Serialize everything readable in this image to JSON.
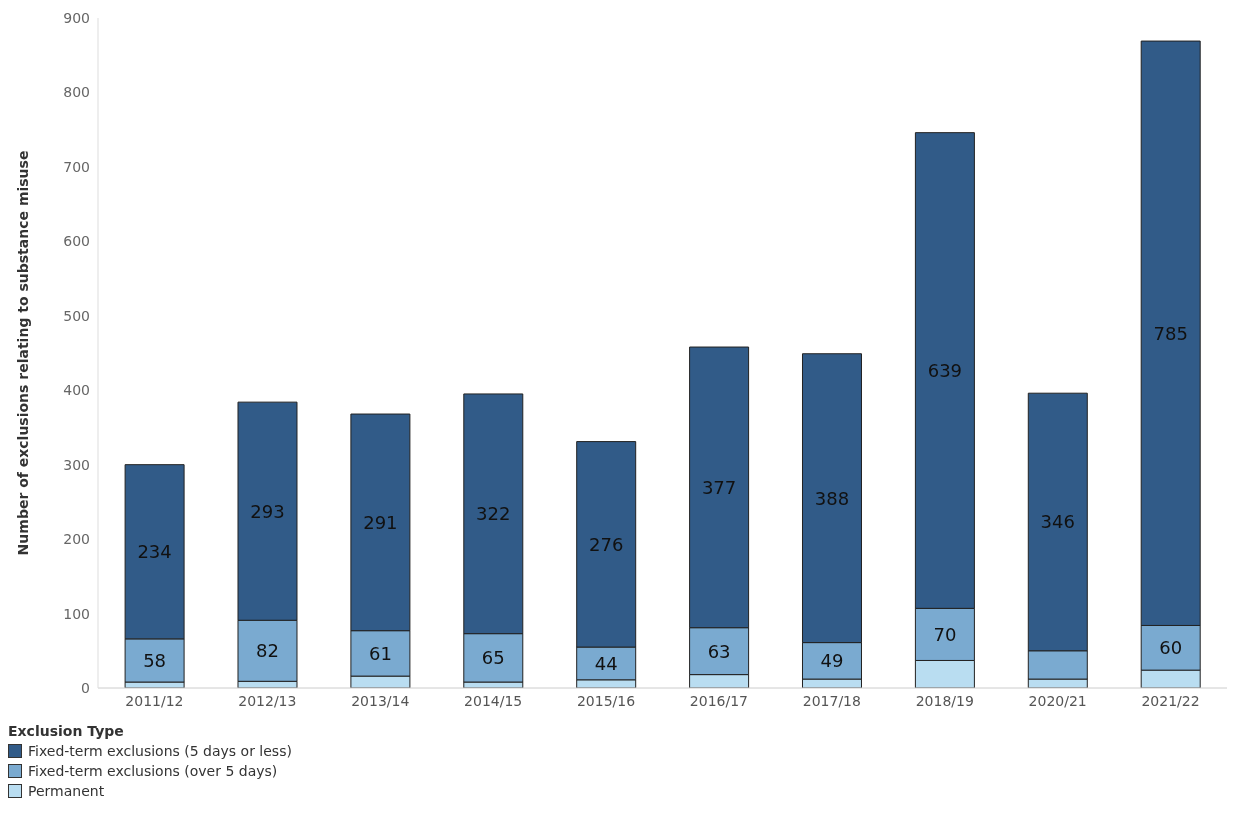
{
  "chart_data": {
    "type": "bar",
    "stacked": true,
    "ylabel": "Number of exclusions relating to substance misuse",
    "legend_title": "Exclusion Type",
    "legend": "bottom left",
    "grid": false,
    "categories": [
      "2011/12",
      "2012/13",
      "2013/14",
      "2014/15",
      "2015/16",
      "2016/17",
      "2017/18",
      "2018/19",
      "2020/21",
      "2021/22"
    ],
    "ylim": [
      0,
      900
    ],
    "yticks": [
      0,
      100,
      200,
      300,
      400,
      500,
      600,
      700,
      800,
      900
    ],
    "series": [
      {
        "name": "Permanent",
        "color": "#b9ddf1",
        "values": [
          8,
          9,
          16,
          8,
          11,
          18,
          12,
          37,
          12,
          24
        ],
        "value_labels": [
          null,
          null,
          null,
          null,
          null,
          null,
          null,
          null,
          null,
          null
        ]
      },
      {
        "name": "Fixed-term exclusions (over 5 days)",
        "color": "#7aaad0",
        "values": [
          58,
          82,
          61,
          65,
          44,
          63,
          49,
          70,
          38,
          60
        ],
        "value_labels": [
          "58",
          "82",
          "61",
          "65",
          "44",
          "63",
          "49",
          "70",
          null,
          "60"
        ]
      },
      {
        "name": "Fixed-term exclusions (5 days or less)",
        "color": "#315b88",
        "values": [
          234,
          293,
          291,
          322,
          276,
          377,
          388,
          639,
          346,
          785
        ],
        "value_labels": [
          "234",
          "293",
          "291",
          "322",
          "276",
          "377",
          "388",
          "639",
          "346",
          "785"
        ]
      }
    ]
  }
}
